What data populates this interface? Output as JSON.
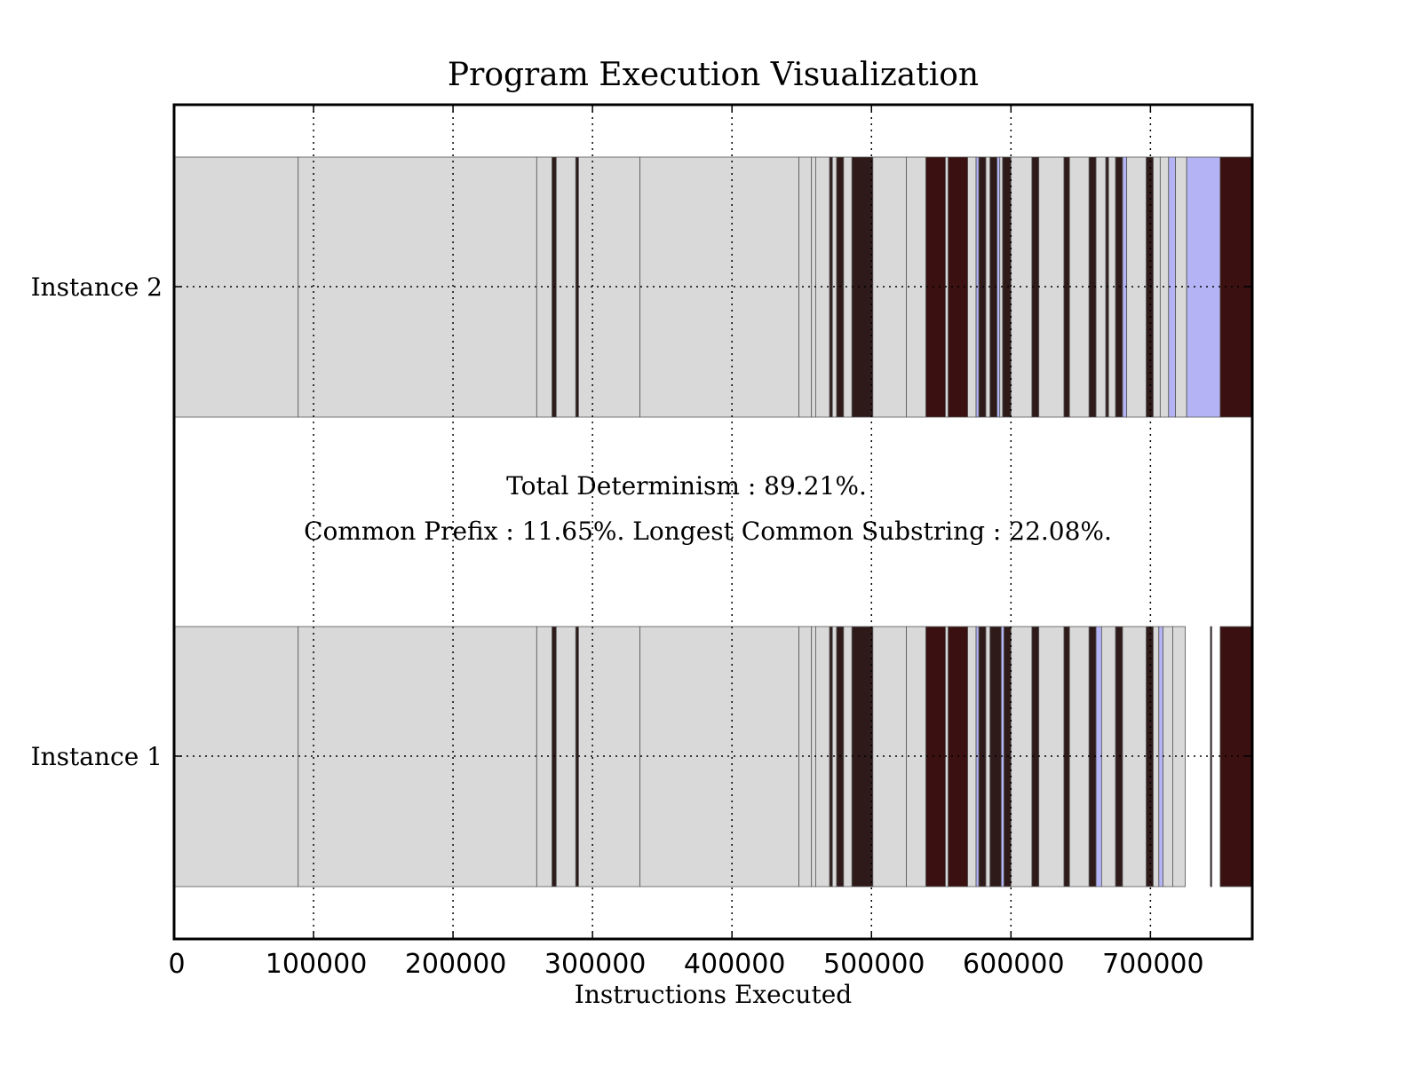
{
  "chart_data": {
    "type": "bar",
    "orientation": "horizontal",
    "title": "Program Execution Visualization",
    "xlabel": "Instructions Executed",
    "ylabel": "",
    "xlim": [
      0,
      773000
    ],
    "xticks": [
      0,
      100000,
      200000,
      300000,
      400000,
      500000,
      600000,
      700000
    ],
    "xtick_labels": [
      "0",
      "100000",
      "200000",
      "300000",
      "400000",
      "500000",
      "600000",
      "700000"
    ],
    "categories": [
      "Instance 1",
      "Instance 2"
    ],
    "grid": true,
    "grid_style": "dotted",
    "annotations": [
      "Total Determinism : 89.21%.",
      "Common Prefix : 11.65%. Longest Common Substring : 22.08%."
    ],
    "colors": {
      "common": "#d9d9d9",
      "dark": "#2f1a1a",
      "red_dark": "#3a1010",
      "divergent": "#b3b3f5",
      "edge": "#555555"
    },
    "series": [
      {
        "category": "Instance 2",
        "segments": [
          {
            "start": 0,
            "end": 89000,
            "kind": "common"
          },
          {
            "start": 89000,
            "end": 260000,
            "kind": "common"
          },
          {
            "start": 260000,
            "end": 271000,
            "kind": "common"
          },
          {
            "start": 271000,
            "end": 274000,
            "kind": "dark"
          },
          {
            "start": 274000,
            "end": 288000,
            "kind": "common"
          },
          {
            "start": 288000,
            "end": 290000,
            "kind": "dark"
          },
          {
            "start": 290000,
            "end": 334000,
            "kind": "common"
          },
          {
            "start": 334000,
            "end": 448000,
            "kind": "common"
          },
          {
            "start": 448000,
            "end": 457000,
            "kind": "common"
          },
          {
            "start": 457000,
            "end": 460000,
            "kind": "common"
          },
          {
            "start": 460000,
            "end": 470000,
            "kind": "common"
          },
          {
            "start": 470000,
            "end": 472000,
            "kind": "dark"
          },
          {
            "start": 472000,
            "end": 475000,
            "kind": "common"
          },
          {
            "start": 475000,
            "end": 480000,
            "kind": "dark"
          },
          {
            "start": 480000,
            "end": 486000,
            "kind": "common"
          },
          {
            "start": 486000,
            "end": 501000,
            "kind": "dark"
          },
          {
            "start": 501000,
            "end": 525000,
            "kind": "common"
          },
          {
            "start": 525000,
            "end": 539000,
            "kind": "common"
          },
          {
            "start": 539000,
            "end": 553000,
            "kind": "red_dark"
          },
          {
            "start": 553000,
            "end": 555000,
            "kind": "common"
          },
          {
            "start": 555000,
            "end": 569000,
            "kind": "red_dark"
          },
          {
            "start": 569000,
            "end": 575000,
            "kind": "common"
          },
          {
            "start": 575000,
            "end": 577000,
            "kind": "divergent"
          },
          {
            "start": 577000,
            "end": 582000,
            "kind": "dark"
          },
          {
            "start": 582000,
            "end": 585000,
            "kind": "common"
          },
          {
            "start": 585000,
            "end": 590000,
            "kind": "dark"
          },
          {
            "start": 590000,
            "end": 592000,
            "kind": "divergent"
          },
          {
            "start": 592000,
            "end": 594000,
            "kind": "common"
          },
          {
            "start": 594000,
            "end": 600000,
            "kind": "dark"
          },
          {
            "start": 600000,
            "end": 615000,
            "kind": "common"
          },
          {
            "start": 615000,
            "end": 620000,
            "kind": "dark"
          },
          {
            "start": 620000,
            "end": 638000,
            "kind": "common"
          },
          {
            "start": 638000,
            "end": 642000,
            "kind": "dark"
          },
          {
            "start": 642000,
            "end": 656000,
            "kind": "common"
          },
          {
            "start": 656000,
            "end": 661000,
            "kind": "dark"
          },
          {
            "start": 661000,
            "end": 668000,
            "kind": "common"
          },
          {
            "start": 668000,
            "end": 670000,
            "kind": "dark"
          },
          {
            "start": 670000,
            "end": 675000,
            "kind": "common"
          },
          {
            "start": 675000,
            "end": 680000,
            "kind": "dark"
          },
          {
            "start": 680000,
            "end": 683000,
            "kind": "divergent"
          },
          {
            "start": 683000,
            "end": 697000,
            "kind": "common"
          },
          {
            "start": 697000,
            "end": 702000,
            "kind": "dark"
          },
          {
            "start": 702000,
            "end": 707000,
            "kind": "common"
          },
          {
            "start": 707000,
            "end": 713000,
            "kind": "common"
          },
          {
            "start": 713000,
            "end": 718000,
            "kind": "divergent"
          },
          {
            "start": 718000,
            "end": 726000,
            "kind": "common"
          },
          {
            "start": 726000,
            "end": 750000,
            "kind": "divergent"
          },
          {
            "start": 750000,
            "end": 773000,
            "kind": "red_dark"
          }
        ]
      },
      {
        "category": "Instance 1",
        "segments": [
          {
            "start": 0,
            "end": 89000,
            "kind": "common"
          },
          {
            "start": 89000,
            "end": 260000,
            "kind": "common"
          },
          {
            "start": 260000,
            "end": 271000,
            "kind": "common"
          },
          {
            "start": 271000,
            "end": 274000,
            "kind": "dark"
          },
          {
            "start": 274000,
            "end": 288000,
            "kind": "common"
          },
          {
            "start": 288000,
            "end": 290000,
            "kind": "dark"
          },
          {
            "start": 290000,
            "end": 334000,
            "kind": "common"
          },
          {
            "start": 334000,
            "end": 448000,
            "kind": "common"
          },
          {
            "start": 448000,
            "end": 457000,
            "kind": "common"
          },
          {
            "start": 457000,
            "end": 460000,
            "kind": "common"
          },
          {
            "start": 460000,
            "end": 470000,
            "kind": "common"
          },
          {
            "start": 470000,
            "end": 472000,
            "kind": "dark"
          },
          {
            "start": 472000,
            "end": 475000,
            "kind": "common"
          },
          {
            "start": 475000,
            "end": 480000,
            "kind": "dark"
          },
          {
            "start": 480000,
            "end": 486000,
            "kind": "common"
          },
          {
            "start": 486000,
            "end": 501000,
            "kind": "dark"
          },
          {
            "start": 501000,
            "end": 525000,
            "kind": "common"
          },
          {
            "start": 525000,
            "end": 539000,
            "kind": "common"
          },
          {
            "start": 539000,
            "end": 553000,
            "kind": "red_dark"
          },
          {
            "start": 553000,
            "end": 555000,
            "kind": "common"
          },
          {
            "start": 555000,
            "end": 569000,
            "kind": "red_dark"
          },
          {
            "start": 569000,
            "end": 575000,
            "kind": "common"
          },
          {
            "start": 575000,
            "end": 577000,
            "kind": "divergent"
          },
          {
            "start": 577000,
            "end": 582000,
            "kind": "dark"
          },
          {
            "start": 582000,
            "end": 585000,
            "kind": "common"
          },
          {
            "start": 585000,
            "end": 593000,
            "kind": "dark"
          },
          {
            "start": 593000,
            "end": 595000,
            "kind": "divergent"
          },
          {
            "start": 595000,
            "end": 600000,
            "kind": "dark"
          },
          {
            "start": 600000,
            "end": 615000,
            "kind": "common"
          },
          {
            "start": 615000,
            "end": 620000,
            "kind": "dark"
          },
          {
            "start": 620000,
            "end": 638000,
            "kind": "common"
          },
          {
            "start": 638000,
            "end": 642000,
            "kind": "dark"
          },
          {
            "start": 642000,
            "end": 656000,
            "kind": "common"
          },
          {
            "start": 656000,
            "end": 661000,
            "kind": "dark"
          },
          {
            "start": 661000,
            "end": 665000,
            "kind": "divergent"
          },
          {
            "start": 665000,
            "end": 675000,
            "kind": "common"
          },
          {
            "start": 675000,
            "end": 680000,
            "kind": "dark"
          },
          {
            "start": 680000,
            "end": 697000,
            "kind": "common"
          },
          {
            "start": 697000,
            "end": 702000,
            "kind": "dark"
          },
          {
            "start": 702000,
            "end": 706000,
            "kind": "common"
          },
          {
            "start": 706000,
            "end": 709000,
            "kind": "divergent"
          },
          {
            "start": 709000,
            "end": 716000,
            "kind": "common"
          },
          {
            "start": 716000,
            "end": 725000,
            "kind": "common"
          },
          {
            "start": 743000,
            "end": 744000,
            "kind": "dark"
          },
          {
            "start": 750000,
            "end": 773000,
            "kind": "red_dark"
          }
        ]
      }
    ]
  }
}
